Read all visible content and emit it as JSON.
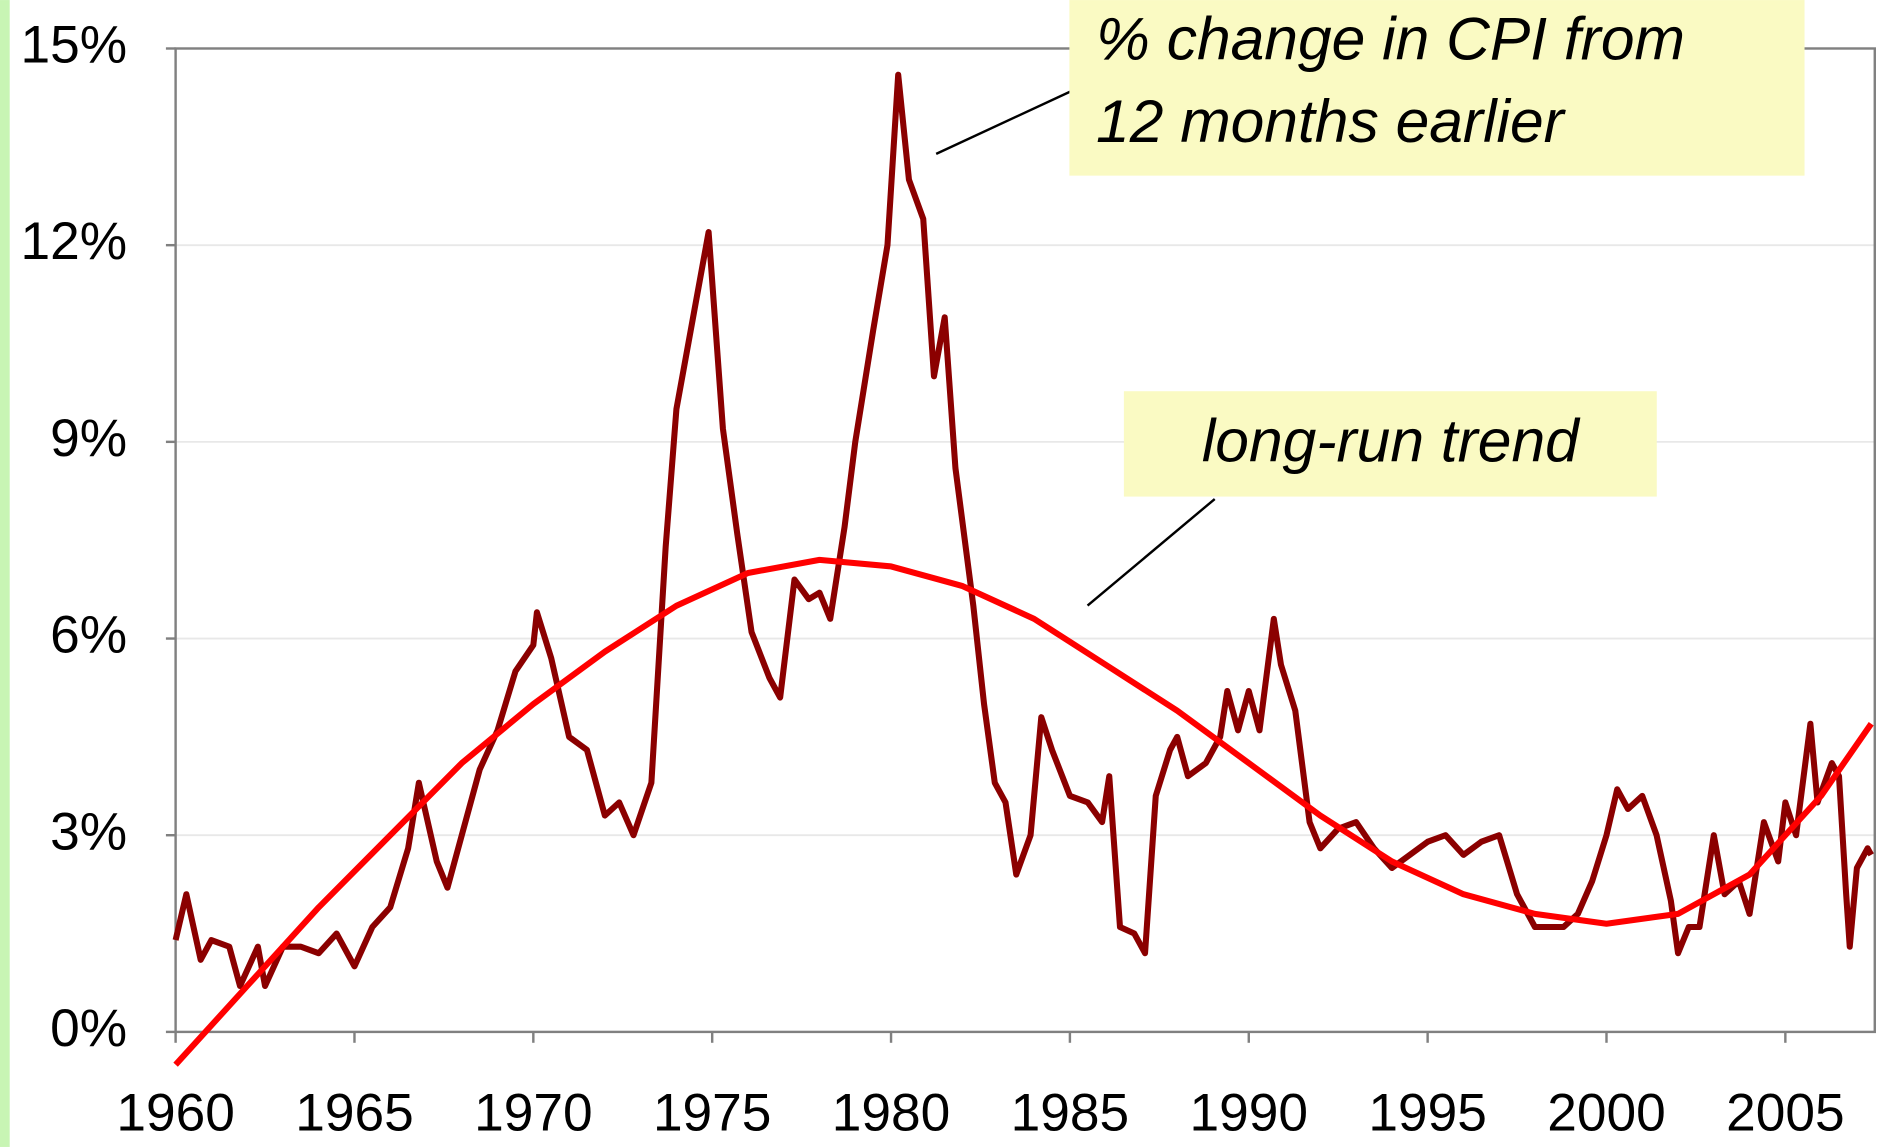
{
  "chart_data": {
    "type": "line",
    "xlim": [
      1960,
      2007.5
    ],
    "xticks": [
      1960,
      1965,
      1970,
      1975,
      1980,
      1985,
      1990,
      1995,
      2000,
      2005
    ],
    "ylim": [
      0,
      15
    ],
    "yticks": [
      {
        "value": 0,
        "label": "0%"
      },
      {
        "value": 3,
        "label": "3%"
      },
      {
        "value": 6,
        "label": "6%"
      },
      {
        "value": 9,
        "label": "9%"
      },
      {
        "value": 12,
        "label": "12%"
      },
      {
        "value": 15,
        "label": "15%"
      }
    ],
    "grid": true,
    "series": [
      {
        "color": "#8b0000",
        "x": [
          1960.0,
          1960.3,
          1960.7,
          1961.0,
          1961.5,
          1961.8,
          1962.3,
          1962.5,
          1963.0,
          1963.5,
          1964.0,
          1964.5,
          1965.0,
          1965.5,
          1966.0,
          1966.5,
          1966.8,
          1967.3,
          1967.6,
          1968.0,
          1968.5,
          1969.0,
          1969.5,
          1970.0,
          1970.1,
          1970.5,
          1971.0,
          1971.5,
          1972.0,
          1972.4,
          1972.8,
          1973.3,
          1973.7,
          1974.0,
          1974.5,
          1974.9,
          1975.3,
          1975.7,
          1976.1,
          1976.6,
          1976.9,
          1977.3,
          1977.7,
          1978.0,
          1978.3,
          1978.7,
          1979.0,
          1979.5,
          1979.9,
          1980.2,
          1980.5,
          1980.9,
          1981.2,
          1981.5,
          1981.8,
          1982.3,
          1982.6,
          1982.9,
          1983.2,
          1983.5,
          1983.9,
          1984.2,
          1984.5,
          1985.0,
          1985.5,
          1985.9,
          1986.1,
          1986.4,
          1986.8,
          1987.1,
          1987.4,
          1987.8,
          1988.0,
          1988.3,
          1988.8,
          1989.2,
          1989.4,
          1989.7,
          1990.0,
          1990.3,
          1990.7,
          1990.9,
          1991.3,
          1991.7,
          1992.0,
          1992.5,
          1993.0,
          1993.5,
          1994.0,
          1994.5,
          1995.0,
          1995.5,
          1996.0,
          1996.5,
          1997.0,
          1997.5,
          1998.0,
          1998.4,
          1998.8,
          1999.2,
          1999.6,
          2000.0,
          2000.3,
          2000.6,
          2001.0,
          2001.4,
          2001.8,
          2002.0,
          2002.3,
          2002.6,
          2003.0,
          2003.3,
          2003.7,
          2004.0,
          2004.4,
          2004.8,
          2005.0,
          2005.3,
          2005.7,
          2005.9,
          2006.3,
          2006.5,
          2006.7,
          2006.8,
          2007.0,
          2007.3,
          2007.4
        ],
        "values": [
          1.4,
          2.1,
          1.1,
          1.4,
          1.3,
          0.7,
          1.3,
          0.7,
          1.3,
          1.3,
          1.2,
          1.5,
          1.0,
          1.6,
          1.9,
          2.8,
          3.8,
          2.6,
          2.2,
          3.0,
          4.0,
          4.6,
          5.5,
          5.9,
          6.4,
          5.7,
          4.5,
          4.3,
          3.3,
          3.5,
          3.0,
          3.8,
          7.4,
          9.5,
          11.0,
          12.2,
          9.2,
          7.6,
          6.1,
          5.4,
          5.1,
          6.9,
          6.6,
          6.7,
          6.3,
          7.7,
          9.0,
          10.7,
          12.0,
          14.6,
          13.0,
          12.4,
          10.0,
          10.9,
          8.6,
          6.5,
          5.0,
          3.8,
          3.5,
          2.4,
          3.0,
          4.8,
          4.3,
          3.6,
          3.5,
          3.2,
          3.9,
          1.6,
          1.5,
          1.2,
          3.6,
          4.3,
          4.5,
          3.9,
          4.1,
          4.5,
          5.2,
          4.6,
          5.2,
          4.6,
          6.3,
          5.6,
          4.9,
          3.2,
          2.8,
          3.1,
          3.2,
          2.8,
          2.5,
          2.7,
          2.9,
          3.0,
          2.7,
          2.9,
          3.0,
          2.1,
          1.6,
          1.6,
          1.6,
          1.8,
          2.3,
          3.0,
          3.7,
          3.4,
          3.6,
          3.0,
          2.0,
          1.2,
          1.6,
          1.6,
          3.0,
          2.1,
          2.3,
          1.8,
          3.2,
          2.6,
          3.5,
          3.0,
          4.7,
          3.5,
          4.1,
          3.9,
          2.1,
          1.3,
          2.5,
          2.8,
          2.7
        ]
      },
      {
        "color": "#ff0000",
        "x": [
          1960,
          1962,
          1964,
          1966,
          1968,
          1970,
          1972,
          1974,
          1976,
          1978,
          1980,
          1982,
          1984,
          1986,
          1988,
          1990,
          1992,
          1994,
          1996,
          1998,
          2000,
          2002,
          2004,
          2006,
          2007.4
        ],
        "values": [
          -0.5,
          0.7,
          1.9,
          3.0,
          4.1,
          5.0,
          5.8,
          6.5,
          7.0,
          7.2,
          7.1,
          6.8,
          6.3,
          5.6,
          4.9,
          4.1,
          3.3,
          2.6,
          2.1,
          1.8,
          1.65,
          1.8,
          2.4,
          3.6,
          4.7
        ]
      }
    ],
    "annotations": [
      {
        "lines": [
          "% change in CPI from",
          "12 months earlier"
        ]
      },
      {
        "lines": [
          "long-run trend"
        ]
      }
    ]
  }
}
